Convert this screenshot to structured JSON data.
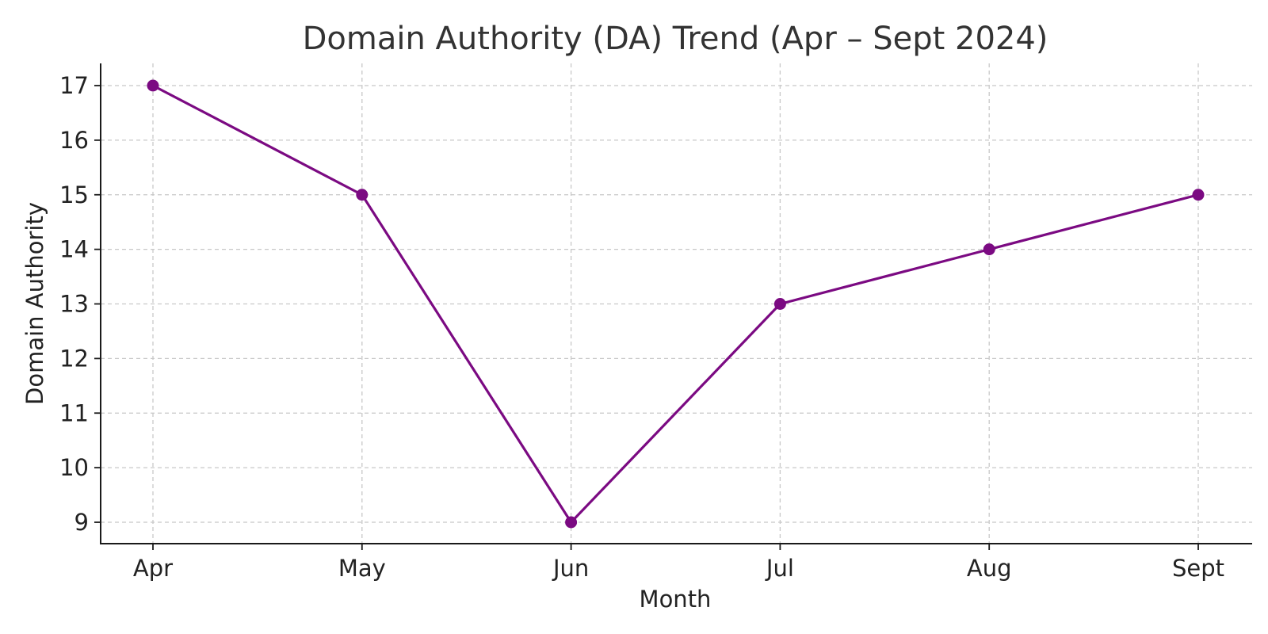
{
  "chart_data": {
    "type": "line",
    "title": "Domain Authority (DA) Trend (Apr – Sept 2024)",
    "xlabel": "Month",
    "ylabel": "Domain Authority",
    "categories": [
      "Apr",
      "May",
      "Jun",
      "Jul",
      "Aug",
      "Sept"
    ],
    "series": [
      {
        "values": [
          17,
          15,
          9,
          13,
          14,
          15
        ],
        "color": "#7b0a82",
        "marker": "circle"
      }
    ],
    "y_ticks": [
      9,
      10,
      11,
      12,
      13,
      14,
      15,
      16,
      17
    ],
    "ylim": [
      8.6,
      17.4
    ],
    "grid": true,
    "grid_style": "dashed"
  }
}
